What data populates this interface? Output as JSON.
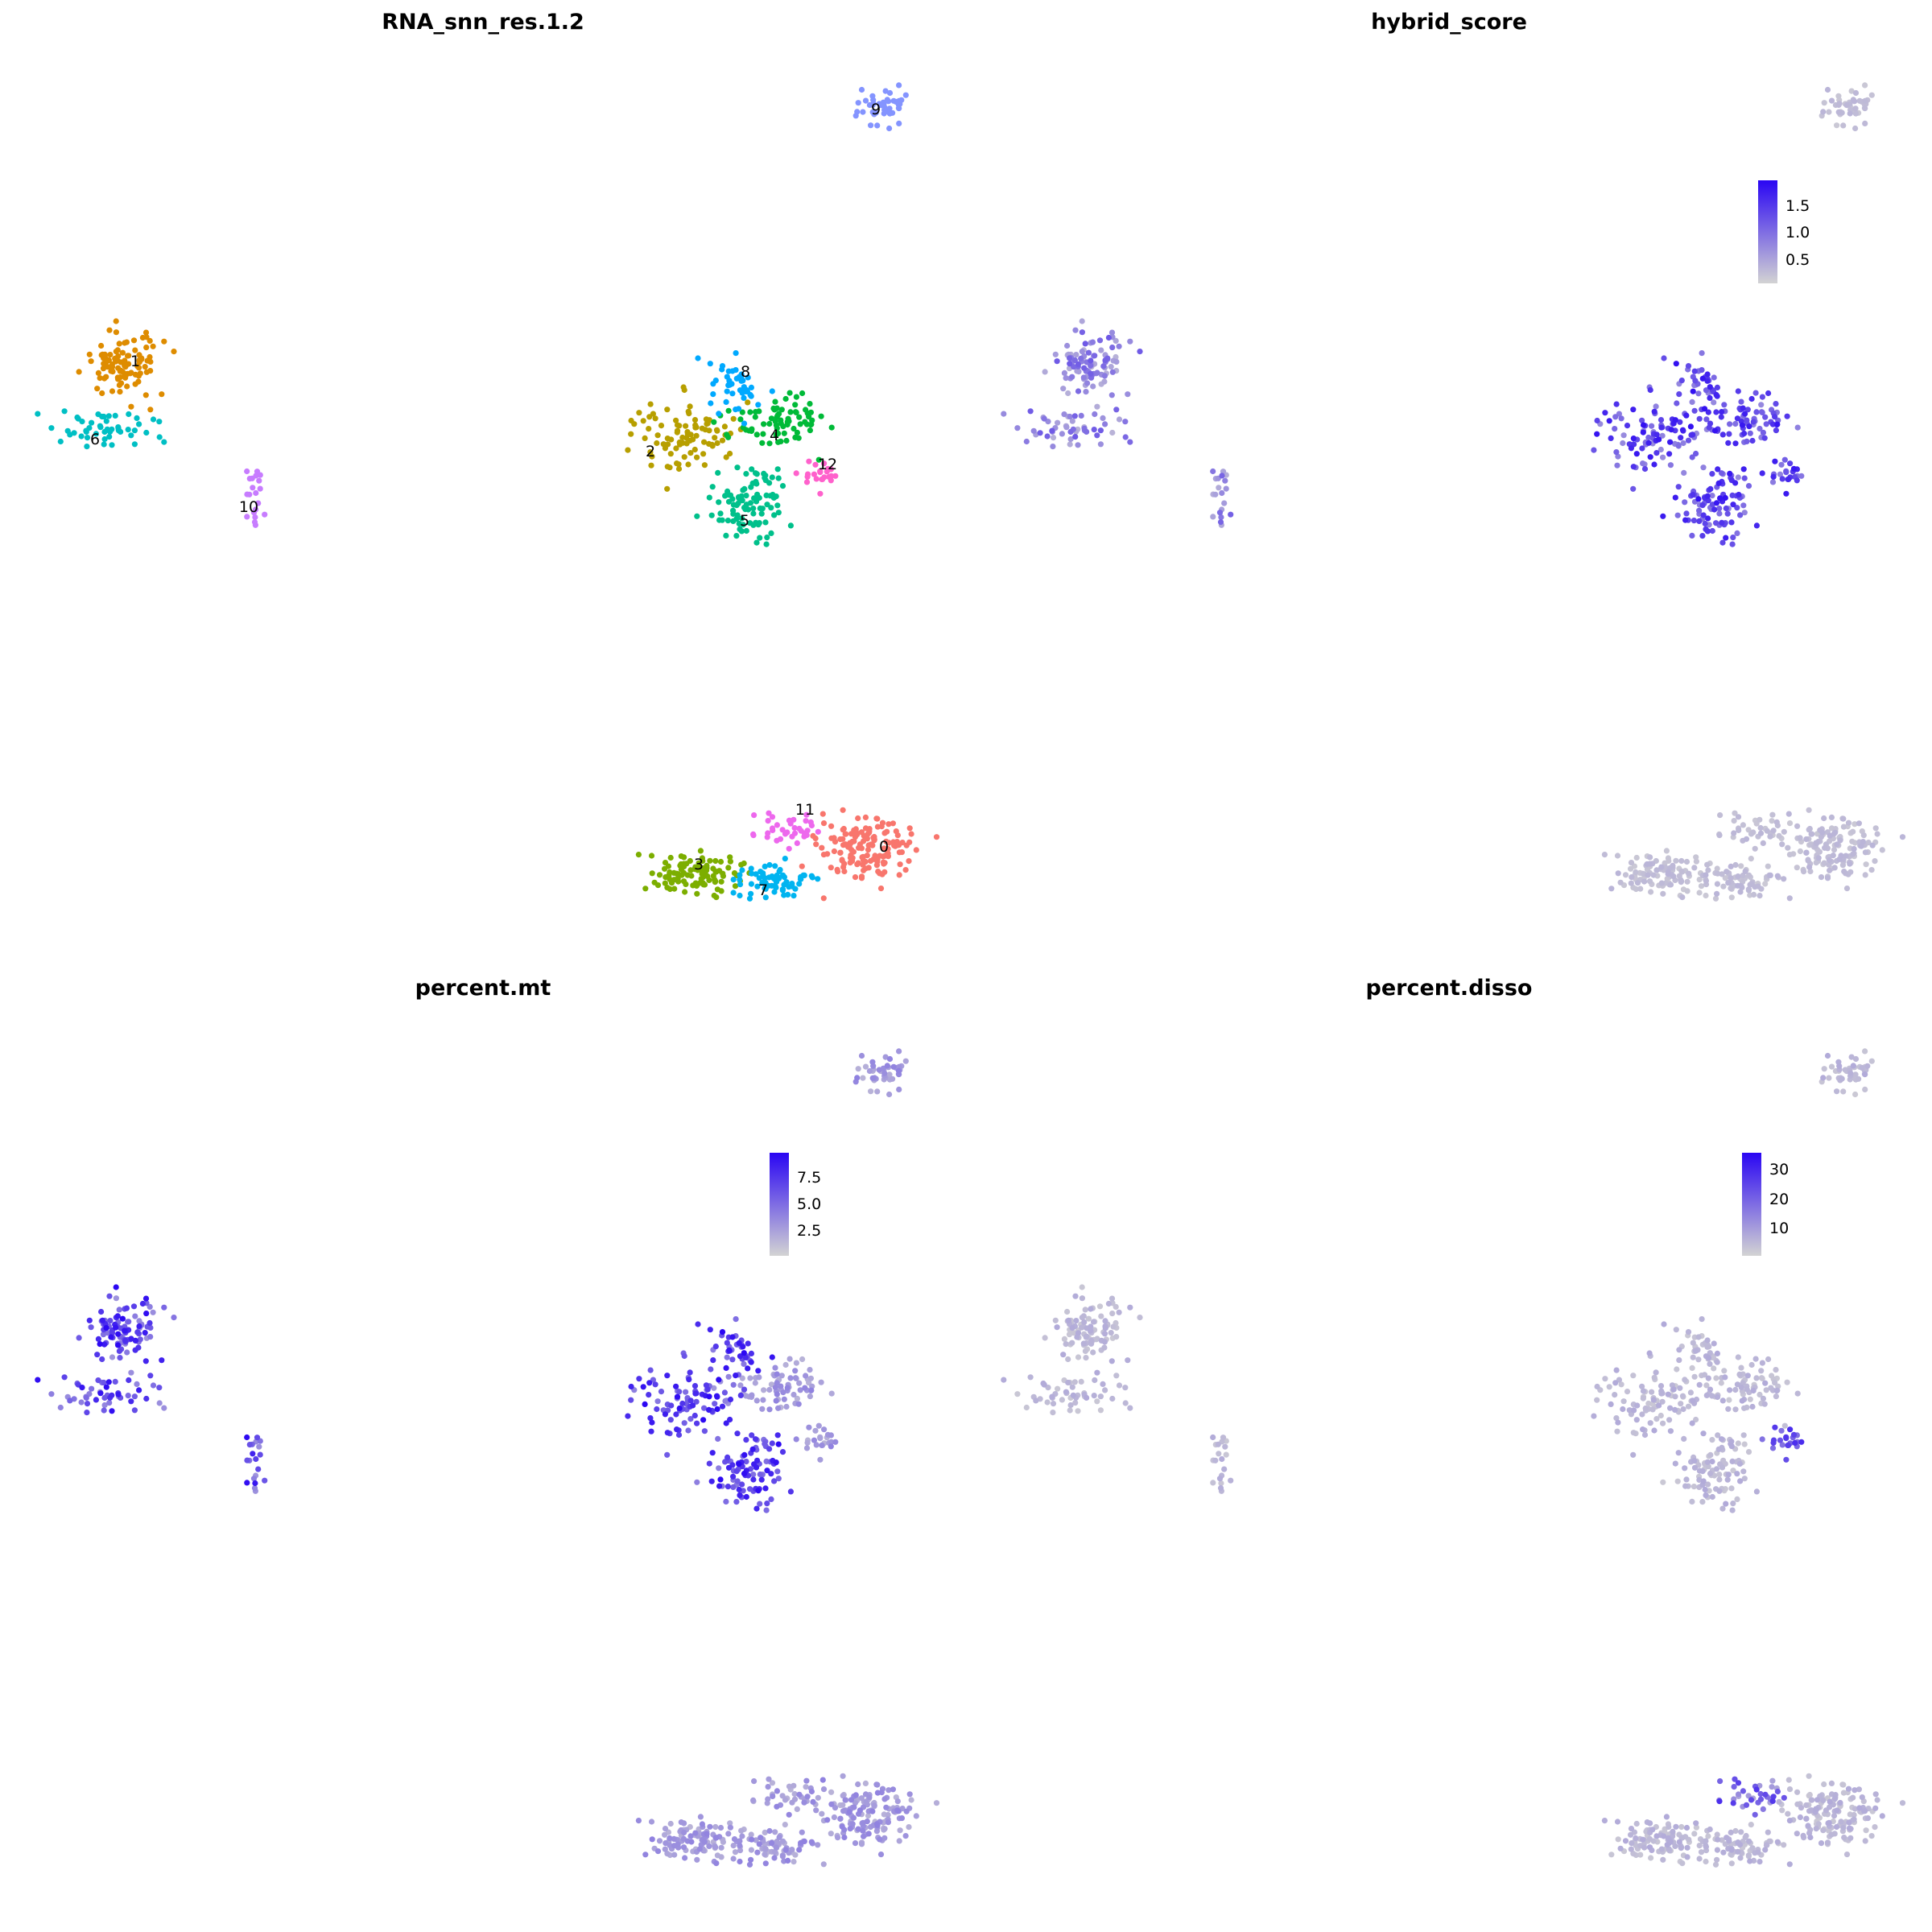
{
  "chart_data": [
    {
      "type": "scatter",
      "title": "RNA_snn_res.1.2",
      "color_mode": "categorical",
      "cluster_labels": [
        "0",
        "1",
        "2",
        "3",
        "4",
        "5",
        "6",
        "7",
        "8",
        "9",
        "10",
        "11",
        "12"
      ],
      "cluster_colors": {
        "0": "#F8766D",
        "1": "#DE8C00",
        "2": "#B79F00",
        "3": "#7CAE00",
        "4": "#00BA38",
        "5": "#00C08B",
        "6": "#00BFC4",
        "7": "#00B4F0",
        "8": "#00A9FF",
        "9": "#8494FF",
        "10": "#C77CFF",
        "11": "#ED68ED",
        "12": "#FF61CC"
      },
      "grid": false,
      "axes": "none"
    },
    {
      "type": "scatter",
      "title": "hybrid_score",
      "color_mode": "continuous",
      "colorscale": [
        "#d3d3d3",
        "#2a06f3"
      ],
      "legend_ticks": [
        "1.5",
        "1.0",
        "0.5"
      ],
      "legend_range": [
        0.1,
        1.9
      ],
      "grid": false,
      "axes": "none"
    },
    {
      "type": "scatter",
      "title": "percent.mt",
      "color_mode": "continuous",
      "colorscale": [
        "#d3d3d3",
        "#2a06f3"
      ],
      "legend_ticks": [
        "7.5",
        "5.0",
        "2.5"
      ],
      "legend_range": [
        0.5,
        9.5
      ],
      "grid": false,
      "axes": "none"
    },
    {
      "type": "scatter",
      "title": "percent.disso",
      "color_mode": "continuous",
      "colorscale": [
        "#d3d3d3",
        "#2a06f3"
      ],
      "legend_ticks": [
        "30",
        "20",
        "10"
      ],
      "legend_range": [
        2,
        35
      ],
      "grid": false,
      "axes": "none"
    }
  ]
}
